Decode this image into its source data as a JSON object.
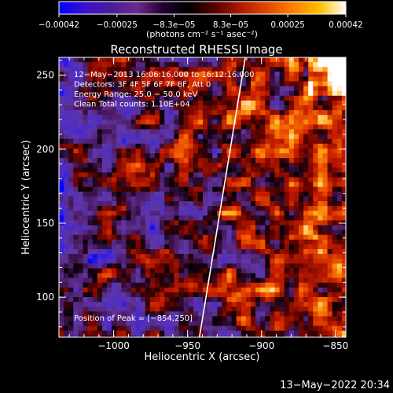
{
  "chart_data": {
    "type": "heatmap",
    "title": "Reconstructed RHESSI Image",
    "xlabel": "Heliocentric X (arcsec)",
    "ylabel": "Heliocentric Y (arcsec)",
    "xlim": [
      -1037,
      -843
    ],
    "ylim": [
      73,
      262
    ],
    "x_ticks": [
      {
        "value": -1000,
        "label": "−1000"
      },
      {
        "value": -950,
        "label": "−950"
      },
      {
        "value": -900,
        "label": "−900"
      },
      {
        "value": -850,
        "label": "−850"
      }
    ],
    "y_ticks": [
      {
        "value": 100,
        "label": "100"
      },
      {
        "value": 150,
        "label": "150"
      },
      {
        "value": 200,
        "label": "200"
      },
      {
        "value": 250,
        "label": "250"
      }
    ],
    "colorbar": {
      "range": [
        -0.00042,
        0.00042
      ],
      "ticks": [
        {
          "value": -0.00042,
          "label": "−0.00042"
        },
        {
          "value": -0.00025,
          "label": "−0.00025"
        },
        {
          "value": -8.3e-05,
          "label": "−8.3e−05"
        },
        {
          "value": 8.3e-05,
          "label": "8.3e−05"
        },
        {
          "value": 0.00025,
          "label": "0.00025"
        },
        {
          "value": 0.00042,
          "label": "0.00042"
        }
      ],
      "unit_label": "(photons cm⁻² s⁻¹ asec⁻²)",
      "colors": [
        "#0000ff",
        "#3a10d0",
        "#4b1c9a",
        "#6a2a8e",
        "#220030",
        "#000000",
        "#5a0000",
        "#b01a00",
        "#e04a00",
        "#ff8000",
        "#ffc000",
        "#ffffff"
      ]
    },
    "annotations": [
      "12−May−2013 16:06:16.000 to 16:12:16.000",
      "Detectors: 3F 4F 5F 6F 7F 8F, Att 0",
      "Energy Range: 25.0 − 50.0 keV",
      "Clean     Total counts: 1.10E+04"
    ],
    "peak_label": "Position of Peak = [−854,250]",
    "peak": {
      "x": -854,
      "y": 250
    },
    "limb_line": [
      {
        "x": -942,
        "y": 73
      },
      {
        "x": -911,
        "y": 262
      }
    ],
    "grid": false
  },
  "timestamp": "13−May−2022 20:34"
}
